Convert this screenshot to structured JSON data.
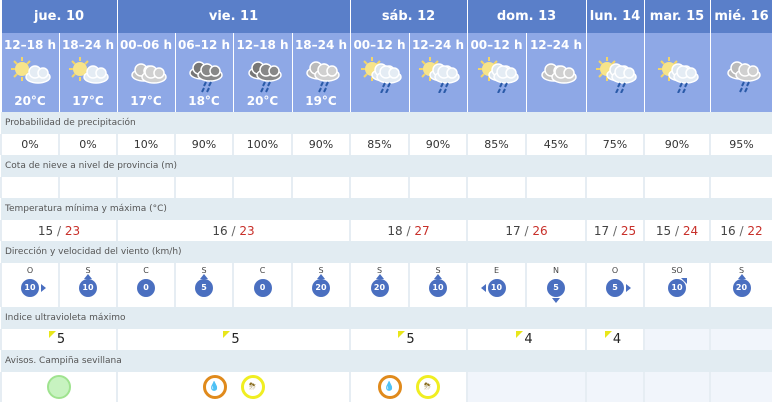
{
  "colors": {
    "header": "#5a7fc9",
    "subheader": "#8ea8e6",
    "label_bg": "#e2ecf2",
    "tmax": "#c8302a",
    "wind": "#4a6fc0",
    "uv_flag": "#e8e61a",
    "warn_green": "#9fe38f",
    "warn_orange": "#e08a1c",
    "warn_yellow": "#f0ee22"
  },
  "days": [
    {
      "label": "jue. 10",
      "span": 2
    },
    {
      "label": "vie. 11",
      "span": 4
    },
    {
      "label": "sáb. 12",
      "span": 2
    },
    {
      "label": "dom. 13",
      "span": 2
    },
    {
      "label": "lun. 14",
      "span": 1
    },
    {
      "label": "mar. 15",
      "span": 1
    },
    {
      "label": "mié. 16",
      "span": 1
    }
  ],
  "periods": [
    {
      "label": "12–18 h",
      "icon": "sun-cloud",
      "temp": "20°C"
    },
    {
      "label": "18–24 h",
      "icon": "sun-cloud",
      "temp": "17°C"
    },
    {
      "label": "00–06 h",
      "icon": "cloud",
      "temp": "17°C"
    },
    {
      "label": "06–12 h",
      "icon": "dark-cloud-rain",
      "temp": "18°C"
    },
    {
      "label": "12–18 h",
      "icon": "dark-cloud-rain",
      "temp": "20°C"
    },
    {
      "label": "18–24 h",
      "icon": "cloud-rain",
      "temp": "19°C"
    },
    {
      "label": "00–12 h",
      "icon": "sun-cloud-rain",
      "temp": ""
    },
    {
      "label": "12–24 h",
      "icon": "sun-cloud-rain",
      "temp": ""
    },
    {
      "label": "00–12 h",
      "icon": "sun-cloud-rain",
      "temp": ""
    },
    {
      "label": "12–24 h",
      "icon": "cloud",
      "temp": ""
    },
    {
      "label": "",
      "icon": "sun-cloud-rain",
      "temp": ""
    },
    {
      "label": "",
      "icon": "sun-cloud-rain",
      "temp": ""
    },
    {
      "label": "",
      "icon": "cloud-rain",
      "temp": ""
    }
  ],
  "rows": {
    "precip": {
      "label": "Probabilidad de precipitación",
      "values": [
        "0%",
        "0%",
        "10%",
        "90%",
        "100%",
        "90%",
        "85%",
        "90%",
        "85%",
        "45%",
        "75%",
        "90%",
        "95%"
      ]
    },
    "snow": {
      "label": "Cota de nieve a nivel de provincia (m)",
      "values": [
        "",
        "",
        "",
        "",
        "",
        "",
        "",
        "",
        "",
        "",
        "",
        "",
        ""
      ]
    },
    "temp": {
      "label": "Temperatura mínima y máxima (°C)",
      "values": [
        {
          "min": "15",
          "max": "23"
        },
        {
          "min": "16",
          "max": "23"
        },
        {
          "min": "18",
          "max": "27"
        },
        {
          "min": "17",
          "max": "26"
        },
        {
          "min": "17",
          "max": "25"
        },
        {
          "min": "15",
          "max": "24"
        },
        {
          "min": "16",
          "max": "22"
        }
      ]
    },
    "wind": {
      "label": "Dirección y velocidad del viento (km/h)",
      "values": [
        {
          "dir": "O",
          "speed": "10"
        },
        {
          "dir": "S",
          "speed": "10"
        },
        {
          "dir": "C",
          "speed": "0"
        },
        {
          "dir": "S",
          "speed": "5"
        },
        {
          "dir": "C",
          "speed": "0"
        },
        {
          "dir": "S",
          "speed": "20"
        },
        {
          "dir": "S",
          "speed": "20"
        },
        {
          "dir": "S",
          "speed": "10"
        },
        {
          "dir": "E",
          "speed": "10"
        },
        {
          "dir": "N",
          "speed": "5"
        },
        {
          "dir": "O",
          "speed": "5"
        },
        {
          "dir": "SO",
          "speed": "10"
        },
        {
          "dir": "S",
          "speed": "20"
        }
      ]
    },
    "uv": {
      "label": "Indice ultravioleta máximo",
      "values": [
        "5",
        "5",
        "5",
        "4",
        "4",
        "",
        ""
      ]
    },
    "warnings": {
      "label": "Avisos. Campiña sevillana",
      "values": [
        [
          "green"
        ],
        [
          "orange-rain",
          "yellow-storm"
        ],
        [
          "orange-rain",
          "yellow-storm"
        ],
        [],
        [],
        [],
        []
      ]
    }
  }
}
